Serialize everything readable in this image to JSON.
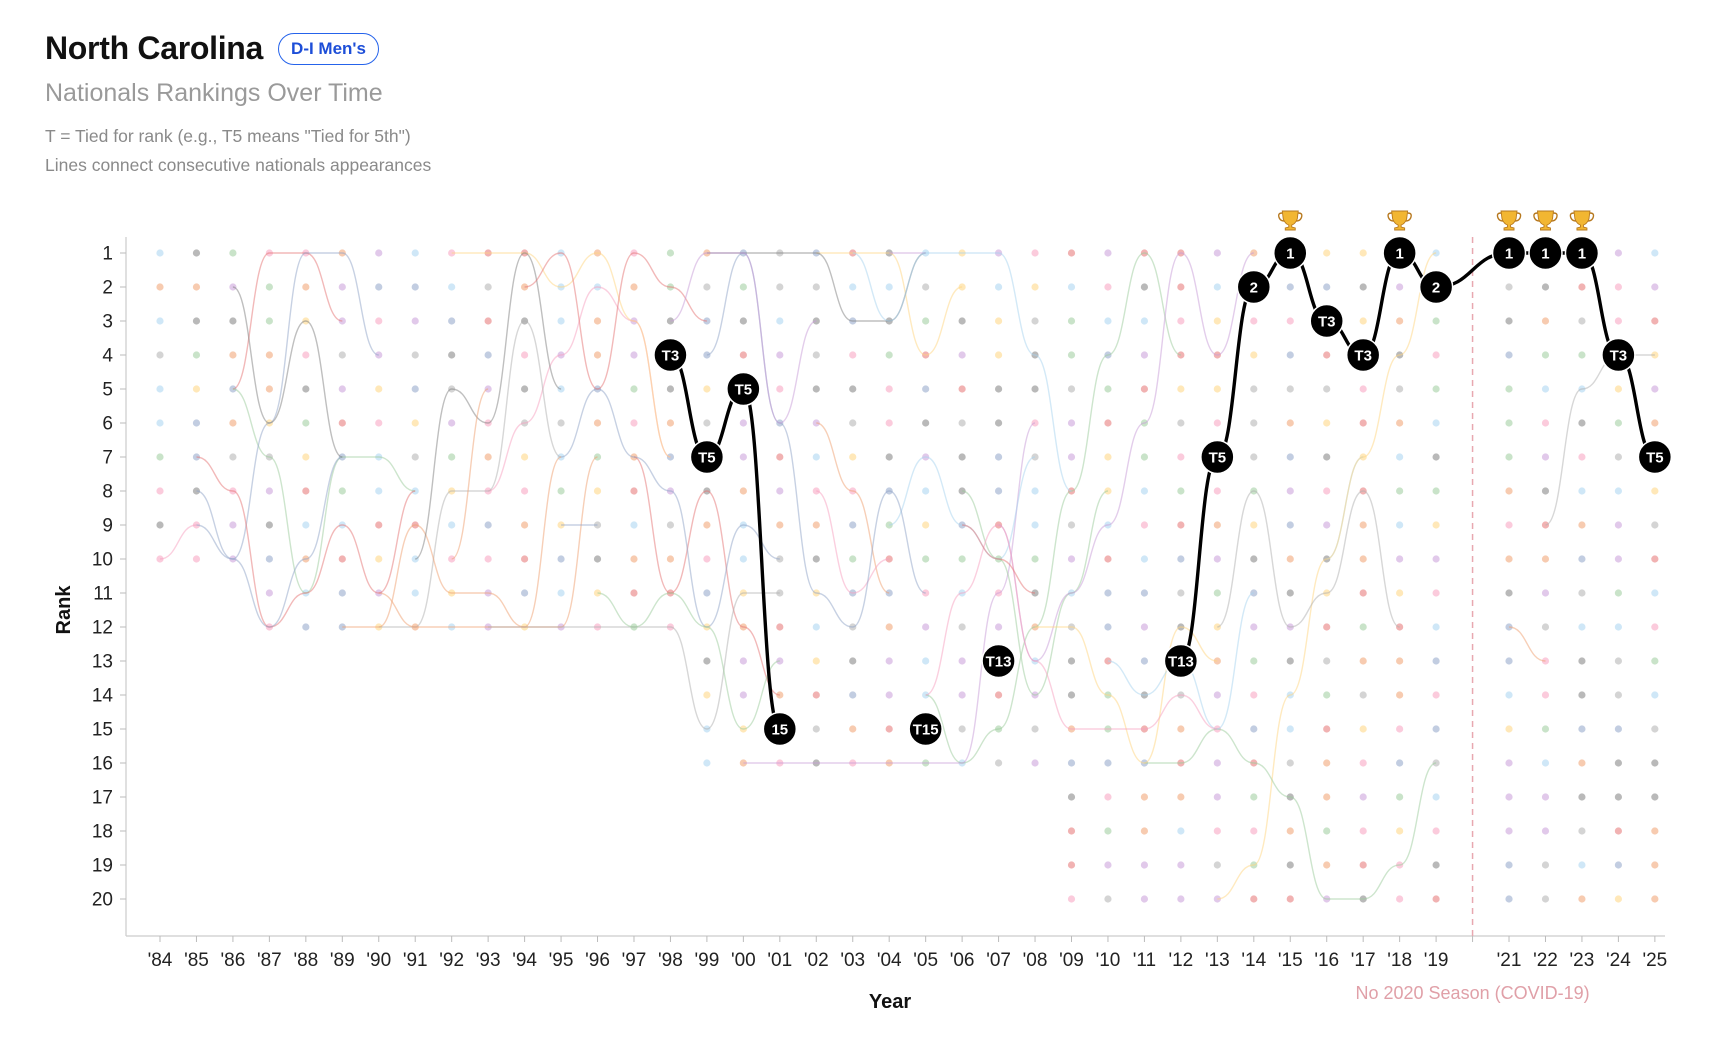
{
  "header": {
    "team": "North Carolina",
    "division_badge": "D-I Men's",
    "subtitle": "Nationals Rankings Over Time",
    "note_tie": "T = Tied for rank (e.g., T5 means \"Tied for 5th\")",
    "note_lines": "Lines connect consecutive nationals appearances"
  },
  "chart_data": {
    "type": "line",
    "xlabel": "Year",
    "ylabel": "Rank",
    "x_tick_labels": [
      "'84",
      "'85",
      "'86",
      "'87",
      "'88",
      "'89",
      "'90",
      "'91",
      "'92",
      "'93",
      "'94",
      "'95",
      "'96",
      "'97",
      "'98",
      "'99",
      "'00",
      "'01",
      "'02",
      "'03",
      "'04",
      "'05",
      "'06",
      "'07",
      "'08",
      "'09",
      "'10",
      "'11",
      "'12",
      "'13",
      "'14",
      "'15",
      "'16",
      "'17",
      "'18",
      "'19",
      "",
      "'21",
      "'22",
      "'23",
      "'24",
      "'25"
    ],
    "years": [
      1984,
      1985,
      1986,
      1987,
      1988,
      1989,
      1990,
      1991,
      1992,
      1993,
      1994,
      1995,
      1996,
      1997,
      1998,
      1999,
      2000,
      2001,
      2002,
      2003,
      2004,
      2005,
      2006,
      2007,
      2008,
      2009,
      2010,
      2011,
      2012,
      2013,
      2014,
      2015,
      2016,
      2017,
      2018,
      2019,
      2020,
      2021,
      2022,
      2023,
      2024,
      2025
    ],
    "y_ticks": [
      1,
      2,
      3,
      4,
      5,
      6,
      7,
      8,
      9,
      10,
      11,
      12,
      13,
      14,
      15,
      16,
      17,
      18,
      19,
      20
    ],
    "y_range": [
      1,
      20
    ],
    "y_inverted": true,
    "highlight_series": {
      "color": "#000000",
      "points": [
        {
          "year": 1998,
          "rank": 4,
          "label": "T3"
        },
        {
          "year": 1999,
          "rank": 7,
          "label": "T5"
        },
        {
          "year": 2000,
          "rank": 5,
          "label": "T5"
        },
        {
          "year": 2001,
          "rank": 15,
          "label": "15"
        },
        {
          "year": 2005,
          "rank": 15,
          "label": "T15"
        },
        {
          "year": 2007,
          "rank": 13,
          "label": "T13"
        },
        {
          "year": 2012,
          "rank": 13,
          "label": "T13"
        },
        {
          "year": 2013,
          "rank": 7,
          "label": "T5"
        },
        {
          "year": 2014,
          "rank": 2,
          "label": "2"
        },
        {
          "year": 2015,
          "rank": 1,
          "label": "1",
          "champion": true
        },
        {
          "year": 2016,
          "rank": 3,
          "label": "T3"
        },
        {
          "year": 2017,
          "rank": 4,
          "label": "T3"
        },
        {
          "year": 2018,
          "rank": 1,
          "label": "1",
          "champion": true
        },
        {
          "year": 2019,
          "rank": 2,
          "label": "2"
        },
        {
          "year": 2021,
          "rank": 1,
          "label": "1",
          "champion": true
        },
        {
          "year": 2022,
          "rank": 1,
          "label": "1",
          "champion": true
        },
        {
          "year": 2023,
          "rank": 1,
          "label": "1",
          "champion": true
        },
        {
          "year": 2024,
          "rank": 4,
          "label": "T3"
        },
        {
          "year": 2025,
          "rank": 7,
          "label": "T5"
        }
      ]
    },
    "champion_icon": "trophy-icon",
    "annotations": [
      {
        "year": 2020,
        "text": "No 2020 Season (COVID-19)",
        "style": "dashed-vertical-line"
      }
    ],
    "background_series_palette": [
      "#e57373",
      "#9ccc9c",
      "#90a4c8",
      "#f0a070",
      "#c89cd8",
      "#ffd680",
      "#a8d4f0",
      "#808080",
      "#f8a0c0",
      "#b0b0b0"
    ],
    "grid": false,
    "legend": "none"
  }
}
